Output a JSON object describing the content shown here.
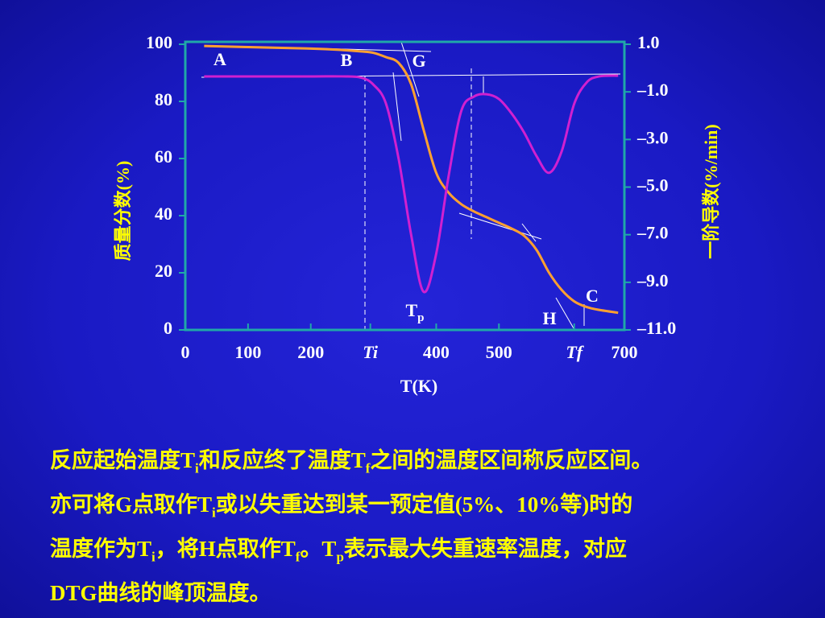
{
  "chart_data": {
    "type": "line",
    "x_label": "T(K)",
    "y_label": "质量分数(%)",
    "y2_label": "一阶导数(%/min)",
    "x": [
      30,
      100,
      200,
      250,
      280,
      300,
      320,
      340,
      360,
      380,
      400,
      420,
      440,
      460,
      480,
      500,
      520,
      540,
      560,
      580,
      600,
      620,
      640,
      660,
      690
    ],
    "series": [
      {
        "color": "#ffa030",
        "values": [
          99.4,
          99,
          98.5,
          98,
          97.5,
          97,
          95.5,
          93.5,
          86,
          70,
          55,
          48,
          44,
          41.5,
          39.5,
          37.5,
          35.5,
          33,
          28,
          20,
          14,
          10,
          8,
          7,
          6
        ]
      },
      {
        "color": "#d020d0",
        "axis": "y2",
        "values": [
          -0.35,
          -0.35,
          -0.35,
          -0.35,
          -0.4,
          -0.7,
          -1.5,
          -3.8,
          -7,
          -9.4,
          -7.8,
          -4.5,
          -1.8,
          -1.2,
          -1.1,
          -1.3,
          -1.9,
          -2.7,
          -3.7,
          -4.4,
          -3.5,
          -1.5,
          -0.6,
          -0.35,
          -0.32
        ]
      }
    ],
    "xlim": [
      0,
      700
    ],
    "xticks": [
      0,
      100,
      200,
      {
        "value": 295,
        "label": "Ti"
      },
      400,
      500,
      {
        "value": 620,
        "label": "Tf"
      },
      700
    ],
    "ylim": [
      0,
      100
    ],
    "yticks": [
      0,
      20,
      40,
      60,
      80,
      100
    ],
    "y2lim": [
      -11,
      1
    ],
    "y2ticks": [
      {
        "value": 1,
        "label": "1.0"
      },
      {
        "value": -1,
        "label": "–1.0"
      },
      {
        "value": -3,
        "label": "–3.0"
      },
      {
        "value": -5,
        "label": "–5.0"
      },
      {
        "value": -7,
        "label": "–7.0"
      },
      {
        "value": -9,
        "label": "–9.0"
      },
      {
        "value": -11,
        "label": "–11.0"
      }
    ],
    "annotations": [
      {
        "text": "A"
      },
      {
        "text": "B"
      },
      {
        "text": "G"
      },
      {
        "text": "C"
      },
      {
        "text": "H"
      },
      {
        "text": "T",
        "sub": "p"
      }
    ]
  },
  "body": [
    [
      {
        "text": "反应起始温度T"
      },
      {
        "sub": "i"
      },
      {
        "text": "和反应终了温度T"
      },
      {
        "sub": "f"
      },
      {
        "text": "之间的温度区间称反应区间。"
      }
    ],
    [
      {
        "text": "亦可将G点取作T"
      },
      {
        "sub": "i"
      },
      {
        "text": "或以失重达到某一预定值(5%、10%等)时的"
      }
    ],
    [
      {
        "text": "温度作为T"
      },
      {
        "sub": "i"
      },
      {
        "text": "，将H点取作T"
      },
      {
        "sub": "f"
      },
      {
        "text": "。T"
      },
      {
        "sub": "p"
      },
      {
        "text": "表示最大失重速率温度，对应"
      }
    ],
    [
      {
        "text": "DTG曲线的峰顶温度。"
      }
    ]
  ]
}
